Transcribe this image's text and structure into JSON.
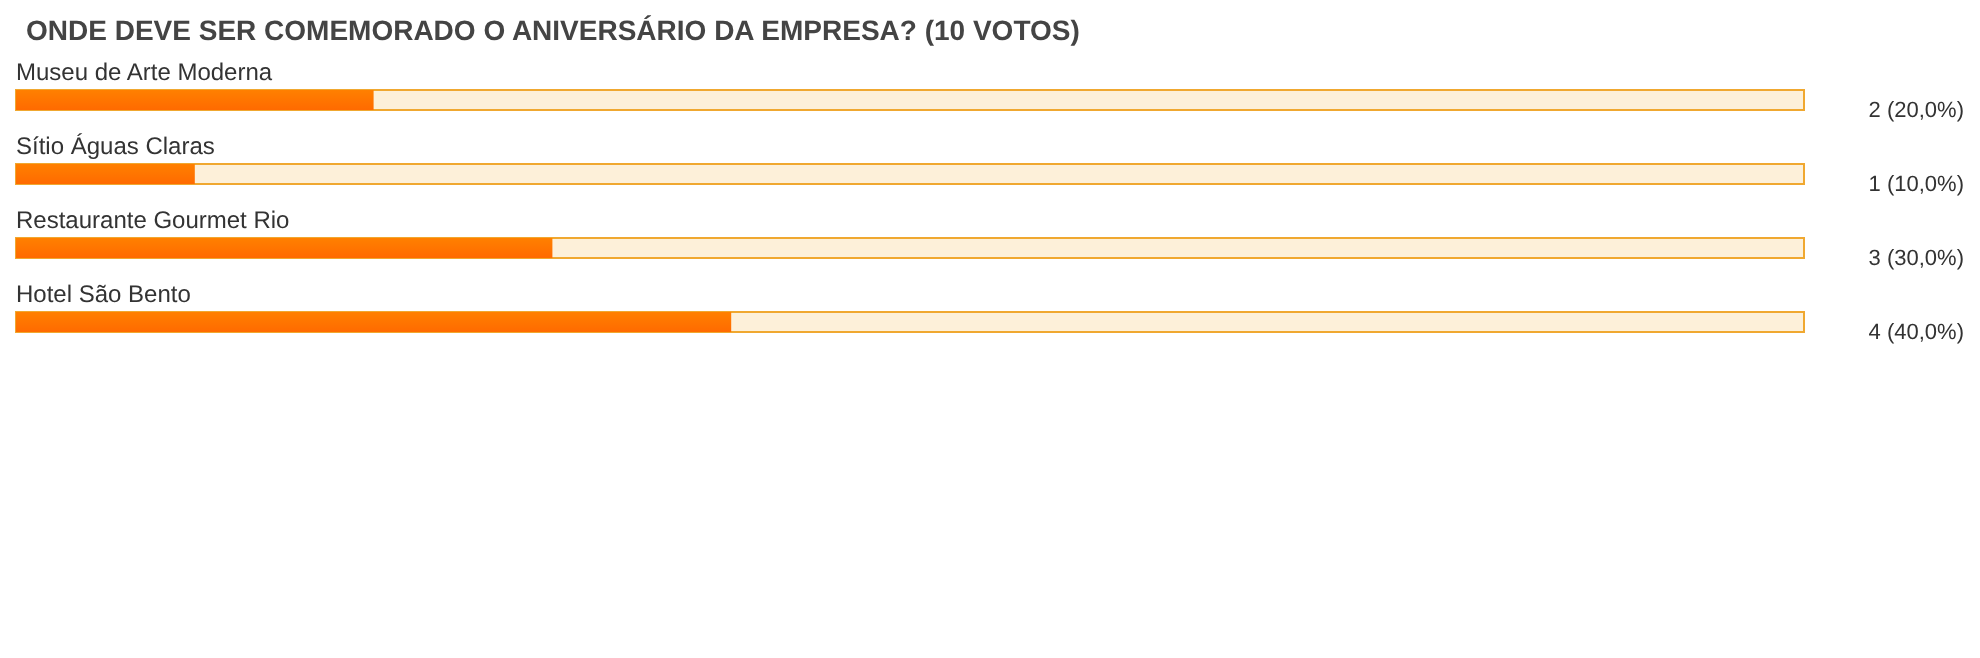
{
  "chart_data": {
    "type": "bar",
    "orientation": "horizontal",
    "title": "ONDE DEVE SER COMEMORADO O ANIVERSÁRIO DA EMPRESA? (10 VOTOS)",
    "categories": [
      "Museu de Arte Moderna",
      "Sítio Águas Claras",
      "Restaurante Gourmet Rio",
      "Hotel São Bento"
    ],
    "values": [
      2,
      1,
      3,
      4
    ],
    "value_labels": [
      "2 (20,0%)",
      "1 (10,0%)",
      "3 (30,0%)",
      "4 (40,0%)"
    ],
    "color": "#ff8000",
    "xlim": [
      0,
      10
    ],
    "tick_labels": "y"
  }
}
